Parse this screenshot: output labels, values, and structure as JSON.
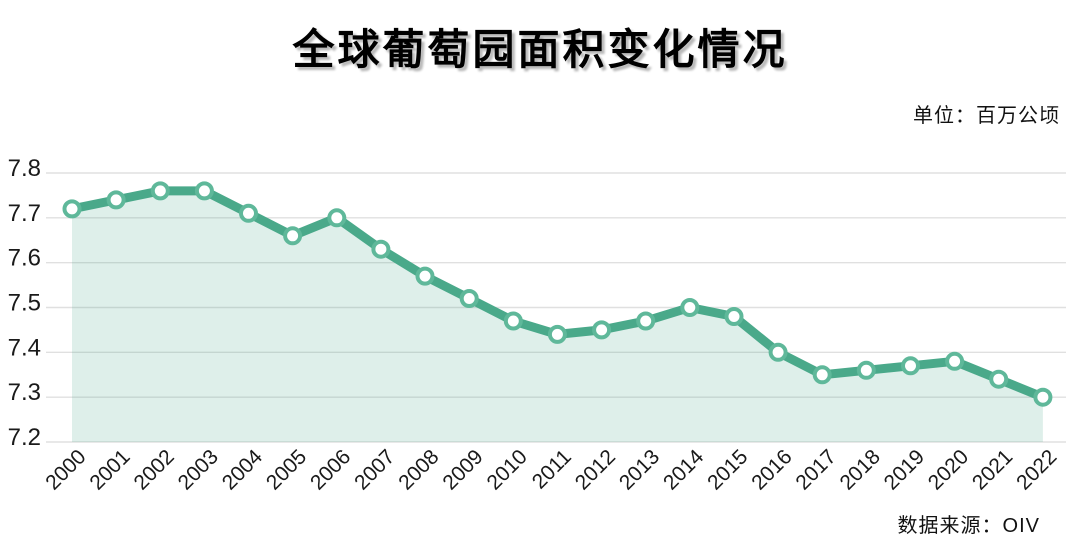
{
  "header": {
    "title": "全球葡萄园面积变化情况",
    "unit_label": "单位：百万公顷"
  },
  "footer": {
    "source_label": "数据来源：OIV"
  },
  "colors": {
    "line": "#4aa98a",
    "marker_ring": "#5fb89a",
    "marker_fill": "#ffffff",
    "area_fill": "#4aa98a",
    "gridline": "#e0e0e0",
    "axis_text": "#1a1a1a"
  },
  "chart_data": {
    "type": "area",
    "title": "全球葡萄园面积变化情况",
    "unit": "百万公顷",
    "source": "OIV",
    "categories": [
      "2000",
      "2001",
      "2002",
      "2003",
      "2004",
      "2005",
      "2006",
      "2007",
      "2008",
      "2009",
      "2010",
      "2011",
      "2012",
      "2013",
      "2014",
      "2015",
      "2016",
      "2017",
      "2018",
      "2019",
      "2020",
      "2021",
      "2022"
    ],
    "series": [
      {
        "name": "全球葡萄园面积",
        "values": [
          7.72,
          7.74,
          7.76,
          7.76,
          7.71,
          7.66,
          7.7,
          7.63,
          7.57,
          7.52,
          7.47,
          7.44,
          7.45,
          7.47,
          7.5,
          7.48,
          7.4,
          7.35,
          7.36,
          7.37,
          7.38,
          7.34,
          7.3
        ]
      }
    ],
    "ylim": [
      7.2,
      7.8
    ],
    "y_ticks": [
      "7.8",
      "7.7",
      "7.6",
      "7.5",
      "7.4",
      "7.3",
      "7.2"
    ],
    "xlabel": "",
    "ylabel": "",
    "grid": "horizontal",
    "legend": false,
    "markers": true,
    "x_label_rotation": -45
  }
}
